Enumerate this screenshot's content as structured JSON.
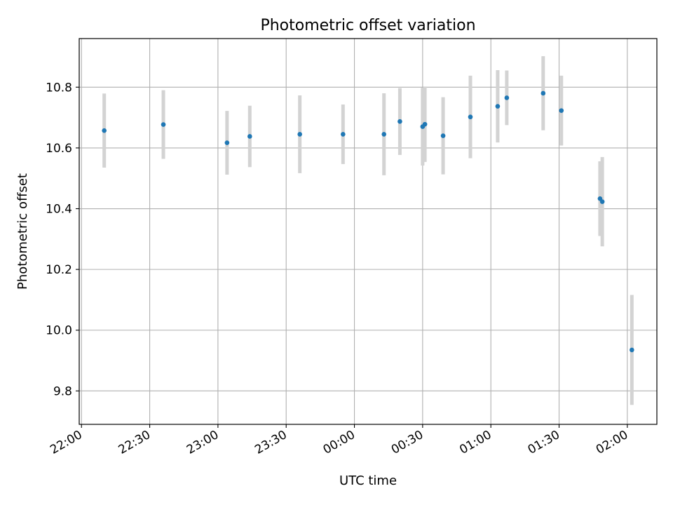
{
  "chart_data": {
    "type": "scatter",
    "title": "Photometric offset variation",
    "xlabel": "UTC time",
    "ylabel": "Photometric offset",
    "x_axis_kind": "time",
    "xlim": [
      "21:59",
      "02:13"
    ],
    "ylim": [
      9.69,
      10.96
    ],
    "x_ticks": [
      "22:00",
      "22:30",
      "23:00",
      "23:30",
      "00:00",
      "00:30",
      "01:00",
      "01:30",
      "02:00"
    ],
    "y_ticks": [
      9.8,
      10.0,
      10.2,
      10.4,
      10.6,
      10.8
    ],
    "y_tick_labels": [
      "9.8",
      "10.0",
      "10.2",
      "10.4",
      "10.6",
      "10.8"
    ],
    "grid": true,
    "x_tick_rotation": "30 degrees",
    "marker_color": "#1f77b4",
    "errorbar_color": "#d3d3d3",
    "points": [
      {
        "x": "22:10",
        "y": 10.657,
        "err": 0.122
      },
      {
        "x": "22:36",
        "y": 10.677,
        "err": 0.113
      },
      {
        "x": "23:04",
        "y": 10.617,
        "err": 0.105
      },
      {
        "x": "23:14",
        "y": 10.638,
        "err": 0.101
      },
      {
        "x": "23:36",
        "y": 10.645,
        "err": 0.128
      },
      {
        "x": "23:55",
        "y": 10.645,
        "err": 0.098
      },
      {
        "x": "00:13",
        "y": 10.645,
        "err": 0.135
      },
      {
        "x": "00:20",
        "y": 10.687,
        "err": 0.11
      },
      {
        "x": "00:30",
        "y": 10.67,
        "err": 0.128
      },
      {
        "x": "00:31",
        "y": 10.678,
        "err": 0.124
      },
      {
        "x": "00:39",
        "y": 10.64,
        "err": 0.127
      },
      {
        "x": "00:51",
        "y": 10.702,
        "err": 0.136
      },
      {
        "x": "01:03",
        "y": 10.737,
        "err": 0.119
      },
      {
        "x": "01:07",
        "y": 10.765,
        "err": 0.09
      },
      {
        "x": "01:23",
        "y": 10.78,
        "err": 0.122
      },
      {
        "x": "01:31",
        "y": 10.723,
        "err": 0.115
      },
      {
        "x": "01:48",
        "y": 10.433,
        "err": 0.123
      },
      {
        "x": "01:49",
        "y": 10.423,
        "err": 0.147
      },
      {
        "x": "02:02",
        "y": 9.935,
        "err": 0.181
      }
    ]
  }
}
